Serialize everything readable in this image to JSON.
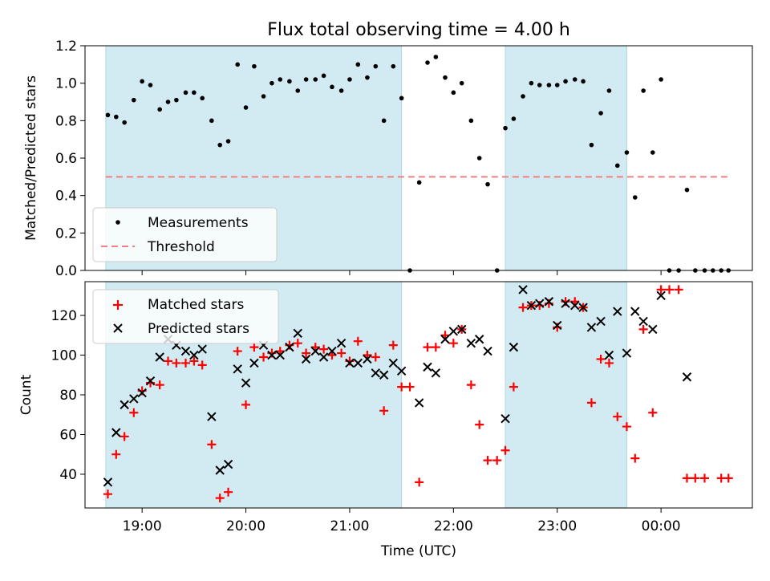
{
  "title": "Flux total observing time = 4.00 h",
  "xlabel": "Time (UTC)",
  "colors": {
    "measurement": "#000000",
    "threshold": "#f08080",
    "shade": "#add8e6",
    "matched": "#ff0000",
    "predicted": "#000000"
  },
  "chart_data": [
    {
      "type": "scatter",
      "panel": "top",
      "ylabel": "Matched/Predicted stars",
      "ylim": [
        0.0,
        1.2
      ],
      "yticks": [
        "0.0",
        "0.2",
        "0.4",
        "0.6",
        "0.8",
        "1.0",
        "1.2"
      ],
      "ytick_values": [
        0.0,
        0.2,
        0.4,
        0.6,
        0.8,
        1.0,
        1.2
      ],
      "xlim_hours": [
        18.45,
        24.88
      ],
      "xticks": [
        "19:00",
        "20:00",
        "21:00",
        "22:00",
        "23:00",
        "00:00"
      ],
      "xtick_values": [
        19,
        20,
        21,
        22,
        23,
        24
      ],
      "shaded_regions": [
        [
          18.65,
          21.5
        ],
        [
          22.5,
          23.67
        ]
      ],
      "threshold": {
        "value": 0.5,
        "x_range": [
          18.65,
          24.65
        ],
        "label": "Threshold"
      },
      "legend": {
        "placement": "lower-left",
        "entries": [
          "Measurements",
          "Threshold"
        ]
      },
      "series": [
        {
          "name": "Measurements",
          "points": [
            [
              18.67,
              0.83
            ],
            [
              18.75,
              0.82
            ],
            [
              18.83,
              0.79
            ],
            [
              18.92,
              0.91
            ],
            [
              19.0,
              1.01
            ],
            [
              19.08,
              0.99
            ],
            [
              19.17,
              0.86
            ],
            [
              19.25,
              0.9
            ],
            [
              19.33,
              0.91
            ],
            [
              19.42,
              0.95
            ],
            [
              19.5,
              0.95
            ],
            [
              19.58,
              0.92
            ],
            [
              19.67,
              0.8
            ],
            [
              19.75,
              0.67
            ],
            [
              19.83,
              0.69
            ],
            [
              19.92,
              1.1
            ],
            [
              20.0,
              0.87
            ],
            [
              20.08,
              1.09
            ],
            [
              20.17,
              0.93
            ],
            [
              20.25,
              1.0
            ],
            [
              20.33,
              1.02
            ],
            [
              20.42,
              1.01
            ],
            [
              20.5,
              0.96
            ],
            [
              20.58,
              1.02
            ],
            [
              20.67,
              1.02
            ],
            [
              20.75,
              1.04
            ],
            [
              20.83,
              0.98
            ],
            [
              20.92,
              0.96
            ],
            [
              21.0,
              1.02
            ],
            [
              21.08,
              1.1
            ],
            [
              21.17,
              1.03
            ],
            [
              21.25,
              1.09
            ],
            [
              21.33,
              0.8
            ],
            [
              21.42,
              1.09
            ],
            [
              21.5,
              0.92
            ],
            [
              21.58,
              0.0
            ],
            [
              21.67,
              0.47
            ],
            [
              21.75,
              1.11
            ],
            [
              21.83,
              1.14
            ],
            [
              21.92,
              1.03
            ],
            [
              22.0,
              0.95
            ],
            [
              22.08,
              1.0
            ],
            [
              22.17,
              0.8
            ],
            [
              22.25,
              0.6
            ],
            [
              22.33,
              0.46
            ],
            [
              22.42,
              0.0
            ],
            [
              22.5,
              0.76
            ],
            [
              22.58,
              0.81
            ],
            [
              22.67,
              0.93
            ],
            [
              22.75,
              1.0
            ],
            [
              22.83,
              0.99
            ],
            [
              22.92,
              0.99
            ],
            [
              23.0,
              0.99
            ],
            [
              23.08,
              1.01
            ],
            [
              23.17,
              1.02
            ],
            [
              23.25,
              1.01
            ],
            [
              23.33,
              0.67
            ],
            [
              23.42,
              0.84
            ],
            [
              23.5,
              0.96
            ],
            [
              23.58,
              0.56
            ],
            [
              23.67,
              0.63
            ],
            [
              23.75,
              0.39
            ],
            [
              23.83,
              0.96
            ],
            [
              23.92,
              0.63
            ],
            [
              24.0,
              1.02
            ],
            [
              24.08,
              0.0
            ],
            [
              24.17,
              0.0
            ],
            [
              24.25,
              0.43
            ],
            [
              24.33,
              0.0
            ],
            [
              24.42,
              0.0
            ],
            [
              24.5,
              0.0
            ],
            [
              24.58,
              0.0
            ],
            [
              24.65,
              0.0
            ]
          ]
        }
      ]
    },
    {
      "type": "scatter",
      "panel": "bottom",
      "ylabel": "Count",
      "ylim": [
        23,
        137
      ],
      "yticks": [
        "40",
        "60",
        "80",
        "100",
        "120"
      ],
      "ytick_values": [
        40,
        60,
        80,
        100,
        120
      ],
      "xlim_hours": [
        18.45,
        24.88
      ],
      "xticks": [
        "19:00",
        "20:00",
        "21:00",
        "22:00",
        "23:00",
        "00:00"
      ],
      "xtick_values": [
        19,
        20,
        21,
        22,
        23,
        24
      ],
      "shaded_regions": [
        [
          18.65,
          21.5
        ],
        [
          22.5,
          23.67
        ]
      ],
      "legend": {
        "placement": "upper-left",
        "entries": [
          "Matched stars",
          "Predicted stars"
        ]
      },
      "series": [
        {
          "name": "Matched stars",
          "marker": "+",
          "points": [
            [
              18.67,
              30
            ],
            [
              18.75,
              50
            ],
            [
              18.83,
              59
            ],
            [
              18.92,
              71
            ],
            [
              19.0,
              82
            ],
            [
              19.08,
              86
            ],
            [
              19.17,
              85
            ],
            [
              19.25,
              97
            ],
            [
              19.33,
              96
            ],
            [
              19.42,
              96
            ],
            [
              19.5,
              97
            ],
            [
              19.58,
              95
            ],
            [
              19.67,
              55
            ],
            [
              19.75,
              28
            ],
            [
              19.83,
              31
            ],
            [
              19.92,
              102
            ],
            [
              20.0,
              75
            ],
            [
              20.08,
              104
            ],
            [
              20.17,
              99
            ],
            [
              20.25,
              101
            ],
            [
              20.33,
              102
            ],
            [
              20.42,
              105
            ],
            [
              20.5,
              106
            ],
            [
              20.58,
              101
            ],
            [
              20.67,
              104
            ],
            [
              20.75,
              103
            ],
            [
              20.83,
              100
            ],
            [
              20.92,
              101
            ],
            [
              21.0,
              97
            ],
            [
              21.08,
              107
            ],
            [
              21.17,
              100
            ],
            [
              21.25,
              99
            ],
            [
              21.33,
              72
            ],
            [
              21.42,
              105
            ],
            [
              21.5,
              84
            ],
            [
              21.58,
              84
            ],
            [
              21.67,
              36
            ],
            [
              21.75,
              104
            ],
            [
              21.83,
              104
            ],
            [
              21.92,
              110
            ],
            [
              22.0,
              106
            ],
            [
              22.08,
              113
            ],
            [
              22.17,
              85
            ],
            [
              22.25,
              65
            ],
            [
              22.33,
              47
            ],
            [
              22.42,
              47
            ],
            [
              22.5,
              52
            ],
            [
              22.58,
              84
            ],
            [
              22.67,
              124
            ],
            [
              22.75,
              125
            ],
            [
              22.83,
              125
            ],
            [
              22.92,
              126
            ],
            [
              23.0,
              114
            ],
            [
              23.08,
              127
            ],
            [
              23.17,
              127
            ],
            [
              23.25,
              124
            ],
            [
              23.33,
              76
            ],
            [
              23.42,
              98
            ],
            [
              23.5,
              96
            ],
            [
              23.58,
              69
            ],
            [
              23.67,
              64
            ],
            [
              23.75,
              48
            ],
            [
              23.83,
              113
            ],
            [
              23.92,
              71
            ],
            [
              24.0,
              133
            ],
            [
              24.08,
              133
            ],
            [
              24.17,
              133
            ],
            [
              24.25,
              38
            ],
            [
              24.33,
              38
            ],
            [
              24.42,
              38
            ],
            [
              24.58,
              38
            ],
            [
              24.65,
              38
            ]
          ]
        },
        {
          "name": "Predicted stars",
          "marker": "x",
          "points": [
            [
              18.67,
              36
            ],
            [
              18.75,
              61
            ],
            [
              18.83,
              75
            ],
            [
              18.92,
              78
            ],
            [
              19.0,
              81
            ],
            [
              19.08,
              87
            ],
            [
              19.17,
              99
            ],
            [
              19.25,
              108
            ],
            [
              19.33,
              105
            ],
            [
              19.42,
              102
            ],
            [
              19.5,
              100
            ],
            [
              19.58,
              103
            ],
            [
              19.67,
              69
            ],
            [
              19.75,
              42
            ],
            [
              19.83,
              45
            ],
            [
              19.92,
              93
            ],
            [
              20.0,
              86
            ],
            [
              20.08,
              96
            ],
            [
              20.17,
              105
            ],
            [
              20.25,
              100
            ],
            [
              20.33,
              100
            ],
            [
              20.42,
              104
            ],
            [
              20.5,
              111
            ],
            [
              20.58,
              98
            ],
            [
              20.67,
              102
            ],
            [
              20.75,
              99
            ],
            [
              20.83,
              102
            ],
            [
              20.92,
              106
            ],
            [
              21.0,
              96
            ],
            [
              21.08,
              96
            ],
            [
              21.17,
              98
            ],
            [
              21.25,
              91
            ],
            [
              21.33,
              90
            ],
            [
              21.42,
              96
            ],
            [
              21.5,
              92
            ],
            [
              21.67,
              76
            ],
            [
              21.75,
              94
            ],
            [
              21.83,
              91
            ],
            [
              21.92,
              108
            ],
            [
              22.0,
              112
            ],
            [
              22.08,
              113
            ],
            [
              22.17,
              106
            ],
            [
              22.25,
              108
            ],
            [
              22.33,
              102
            ],
            [
              22.5,
              68
            ],
            [
              22.58,
              104
            ],
            [
              22.67,
              133
            ],
            [
              22.75,
              125
            ],
            [
              22.83,
              126
            ],
            [
              22.92,
              127
            ],
            [
              23.0,
              115
            ],
            [
              23.08,
              126
            ],
            [
              23.17,
              125
            ],
            [
              23.25,
              124
            ],
            [
              23.33,
              114
            ],
            [
              23.42,
              117
            ],
            [
              23.5,
              100
            ],
            [
              23.58,
              122
            ],
            [
              23.67,
              101
            ],
            [
              23.75,
              122
            ],
            [
              23.83,
              117
            ],
            [
              23.92,
              113
            ],
            [
              24.0,
              130
            ],
            [
              24.25,
              89
            ]
          ]
        }
      ]
    }
  ]
}
